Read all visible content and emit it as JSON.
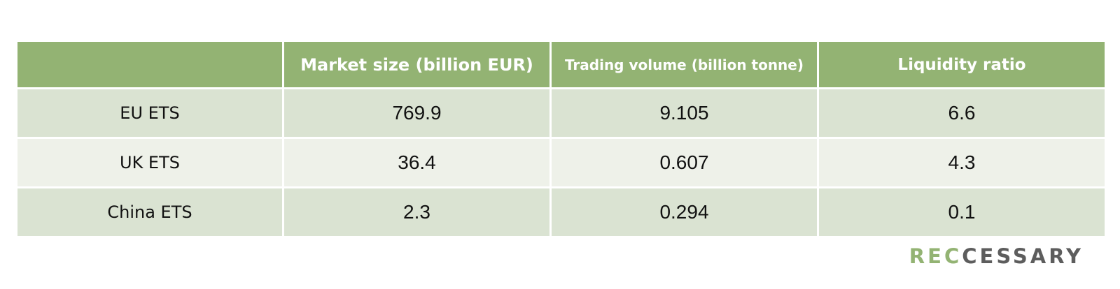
{
  "table": {
    "headers": [
      "",
      "Market size (billion EUR)",
      "Trading volume (billion tonne)",
      "Liquidity ratio"
    ],
    "rows": [
      {
        "name": "EU ETS",
        "market_size": "769.9",
        "trading_volume": "9.105",
        "liquidity_ratio": "6.6"
      },
      {
        "name": "UK ETS",
        "market_size": "36.4",
        "trading_volume": "0.607",
        "liquidity_ratio": "4.3"
      },
      {
        "name": "China ETS",
        "market_size": "2.3",
        "trading_volume": "0.294",
        "liquidity_ratio": "0.1"
      }
    ]
  },
  "chart_data": {
    "type": "table",
    "columns": [
      "",
      "Market size (billion EUR)",
      "Trading volume (billion tonne)",
      "Liquidity ratio"
    ],
    "rows": [
      [
        "EU ETS",
        769.9,
        9.105,
        6.6
      ],
      [
        "UK ETS",
        36.4,
        0.607,
        4.3
      ],
      [
        "China ETS",
        2.3,
        0.294,
        0.1
      ]
    ]
  },
  "logo": {
    "part1": "REC",
    "part2": "CESSARY"
  },
  "colors": {
    "header_bg": "#93b373",
    "row_band_a": "#dae3d2",
    "row_band_b": "#eef1e9",
    "logo_green": "#93b373",
    "logo_gray": "#5d5d5d"
  }
}
